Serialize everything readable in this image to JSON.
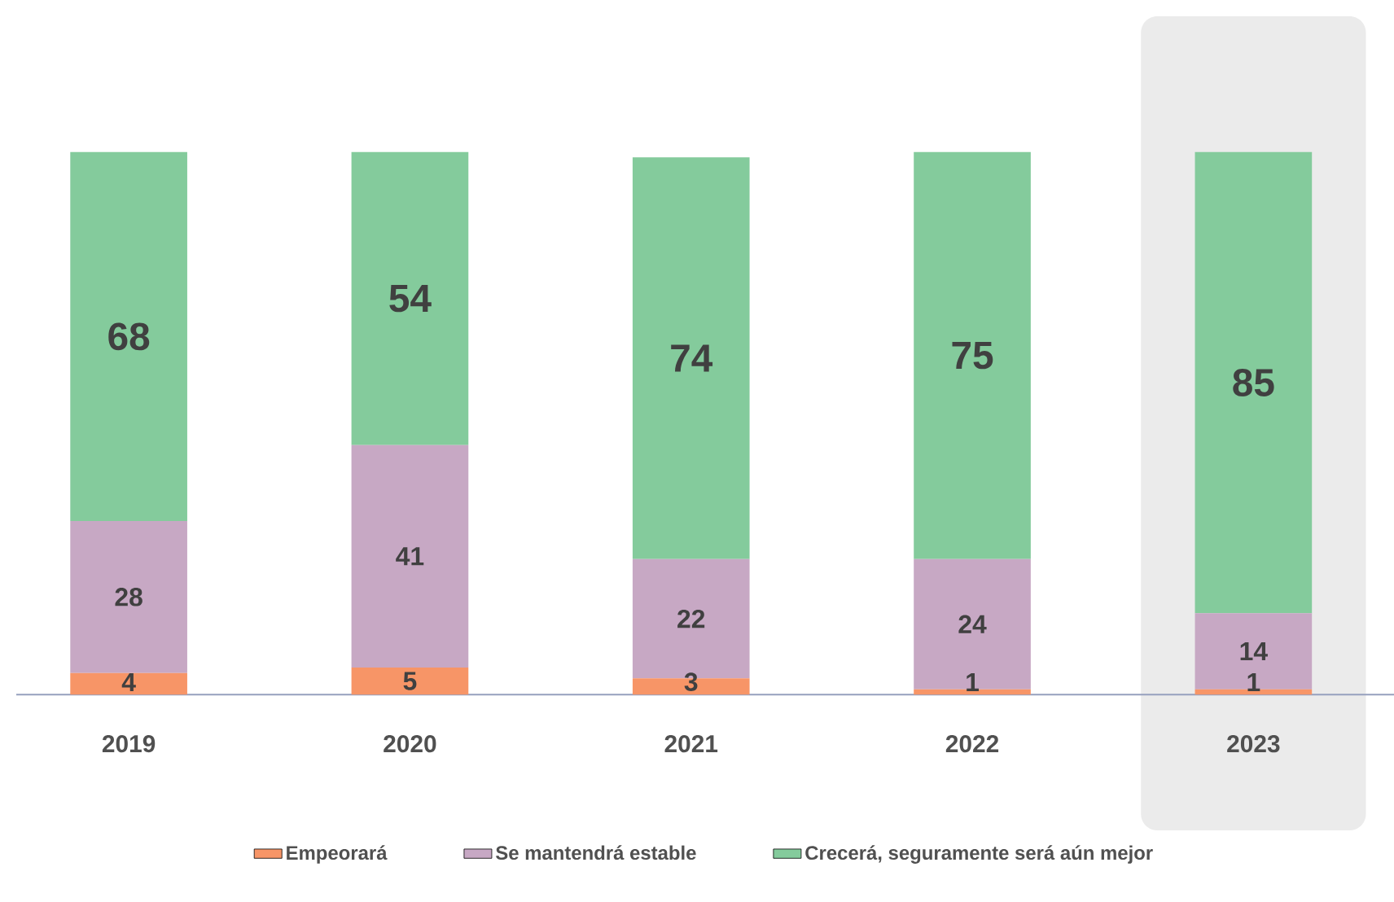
{
  "chart_data": {
    "type": "bar",
    "stacked": true,
    "data_labels": true,
    "legend": "bottom",
    "categories": [
      "2019",
      "2020",
      "2021",
      "2022",
      "2023"
    ],
    "series": [
      {
        "name": "Empeorará",
        "color": "#f79567",
        "values": [
          4,
          5,
          3,
          1,
          1
        ]
      },
      {
        "name": "Se mantendrá estable",
        "color": "#c7a8c4",
        "values": [
          28,
          41,
          22,
          24,
          14
        ]
      },
      {
        "name": "Crecerá, seguramente será aún mejor",
        "color": "#84cb9c",
        "values": [
          68,
          54,
          74,
          75,
          85
        ]
      }
    ],
    "bands": [
      {
        "axis": "x",
        "from": "2023",
        "to": "2023",
        "color": "#ebebeb"
      }
    ]
  }
}
